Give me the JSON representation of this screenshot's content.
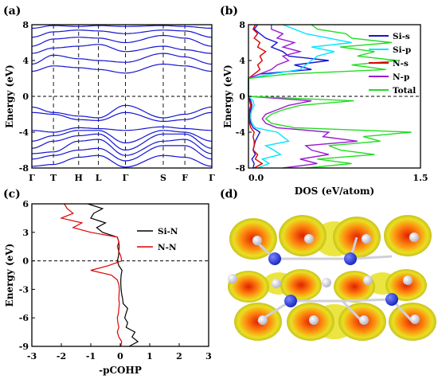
{
  "panels": {
    "a": "(a)",
    "b": "(b)",
    "c": "(c)",
    "d": "(d)"
  },
  "chart_data": [
    {
      "panel": "(a)",
      "type": "line",
      "ylabel": "Energy (eV)",
      "ylim": [
        -8,
        8
      ],
      "yticks": [
        "8",
        "4",
        "0",
        "-4",
        "-8"
      ],
      "xtick_labels": [
        "Γ",
        "T",
        "H",
        "L",
        "Γ",
        "S",
        "F",
        "Γ"
      ],
      "fermi_level": 0,
      "color": "#1414d2",
      "bands": [
        [
          -7.8,
          -7.6,
          -6.8,
          -6.6,
          -7.9,
          -6.6,
          -6.8,
          -7.8
        ],
        [
          -7.0,
          -6.6,
          -6.0,
          -5.8,
          -7.2,
          -5.5,
          -5.5,
          -7.0
        ],
        [
          -6.4,
          -6.2,
          -5.0,
          -4.8,
          -6.6,
          -5.0,
          -4.8,
          -6.4
        ],
        [
          -5.8,
          -5.0,
          -4.4,
          -4.2,
          -6.0,
          -4.2,
          -4.2,
          -5.8
        ],
        [
          -5.0,
          -4.4,
          -3.8,
          -3.8,
          -5.2,
          -3.8,
          -4.0,
          -5.0
        ],
        [
          -3.8,
          -4.0,
          -3.5,
          -3.6,
          -3.8,
          -3.4,
          -3.6,
          -3.8
        ],
        [
          -1.8,
          -2.0,
          -2.6,
          -2.7,
          -1.8,
          -2.8,
          -2.6,
          -1.8
        ],
        [
          -1.2,
          -1.8,
          -2.2,
          -2.4,
          -1.0,
          -2.4,
          -2.0,
          -1.2
        ],
        [
          2.8,
          3.4,
          3.2,
          3.0,
          2.6,
          3.6,
          3.4,
          2.8
        ],
        [
          3.6,
          4.6,
          4.2,
          4.0,
          3.8,
          4.8,
          4.4,
          3.6
        ],
        [
          4.8,
          5.4,
          5.6,
          5.8,
          5.0,
          5.6,
          5.2,
          4.8
        ],
        [
          5.6,
          6.4,
          6.6,
          6.5,
          6.0,
          6.8,
          6.5,
          5.6
        ],
        [
          6.6,
          7.2,
          7.4,
          7.3,
          7.0,
          7.4,
          7.3,
          6.6
        ],
        [
          7.6,
          7.9,
          7.8,
          7.9,
          7.8,
          7.9,
          7.8,
          7.6
        ]
      ]
    },
    {
      "panel": "(b)",
      "type": "line",
      "xlabel": "DOS (eV/atom)",
      "ylabel": "Energy (eV)",
      "xlim": [
        0,
        1.5
      ],
      "ylim": [
        -8,
        8
      ],
      "xticks": [
        "0.0",
        "1.5"
      ],
      "yticks": [
        "8",
        "4",
        "0",
        "-4",
        "-8"
      ],
      "fermi_level": 0,
      "energy": [
        -8,
        -7.5,
        -7,
        -6.5,
        -6,
        -5.5,
        -5,
        -4.5,
        -4,
        -3.5,
        -3,
        -2.5,
        -2,
        -1.5,
        -1,
        -0.5,
        0,
        0.5,
        1,
        1.5,
        2,
        2.5,
        3,
        3.5,
        4,
        4.5,
        5,
        5.5,
        6,
        6.5,
        7,
        7.5,
        8
      ],
      "series": [
        {
          "name": "Si-s",
          "color": "#1414d2",
          "values": [
            0.04,
            0.05,
            0.03,
            0.06,
            0.04,
            0.05,
            0.06,
            0.08,
            0.1,
            0.04,
            0.02,
            0.01,
            0.01,
            0.02,
            0.03,
            0.02,
            0,
            0,
            0,
            0,
            0,
            0.1,
            0.55,
            0.4,
            0.7,
            0.35,
            0.3,
            0.2,
            0.25,
            0.15,
            0.1,
            0.05,
            0.08
          ]
        },
        {
          "name": "Si-p",
          "color": "#00e5ff",
          "values": [
            0.08,
            0.18,
            0.12,
            0.28,
            0.22,
            0.15,
            0.35,
            0.3,
            0.25,
            0.06,
            0.03,
            0.02,
            0.02,
            0.03,
            0.05,
            0.04,
            0,
            0,
            0,
            0,
            0,
            0.2,
            0.45,
            0.5,
            0.55,
            0.6,
            0.75,
            0.55,
            0.9,
            0.7,
            0.5,
            0.4,
            0.3
          ]
        },
        {
          "name": "N-s",
          "color": "#e00000",
          "values": [
            0.05,
            0.12,
            0.06,
            0.08,
            0.04,
            0.05,
            0.05,
            0.04,
            0.05,
            0.02,
            0.01,
            0.01,
            0.01,
            0.01,
            0.02,
            0.01,
            0,
            0,
            0,
            0,
            0,
            0.05,
            0.1,
            0.08,
            0.12,
            0.1,
            0.15,
            0.08,
            0.1,
            0.05,
            0.08,
            0.04,
            0.06
          ]
        },
        {
          "name": "N-p",
          "color": "#9b19d0",
          "values": [
            0.3,
            0.6,
            0.45,
            0.7,
            0.55,
            0.5,
            0.95,
            0.65,
            0.7,
            0.25,
            0.15,
            0.12,
            0.15,
            0.25,
            0.35,
            0.55,
            0,
            0,
            0,
            0,
            0,
            0.1,
            0.2,
            0.25,
            0.35,
            0.3,
            0.45,
            0.3,
            0.4,
            0.25,
            0.3,
            0.2,
            0.2
          ]
        },
        {
          "name": "Total",
          "color": "#22dd22",
          "values": [
            0.5,
            0.9,
            0.6,
            1.1,
            0.8,
            0.7,
            1.15,
            1.0,
            1.42,
            0.4,
            0.2,
            0.15,
            0.2,
            0.3,
            0.45,
            0.92,
            0,
            0,
            0,
            0,
            0,
            0.35,
            1.2,
            0.9,
            1.3,
            0.95,
            1.1,
            0.8,
            1.25,
            0.9,
            0.85,
            0.6,
            0.55
          ]
        }
      ],
      "legend": "top-right"
    },
    {
      "panel": "(c)",
      "type": "line",
      "xlabel": "-pCOHP",
      "ylabel": "Energy (eV)",
      "xlim": [
        -3,
        3
      ],
      "ylim": [
        -9,
        6
      ],
      "xticks": [
        "-3",
        "-2",
        "-1",
        "0",
        "1",
        "2",
        "3"
      ],
      "yticks": [
        "6",
        "3",
        "0",
        "-3",
        "-6",
        "-9"
      ],
      "fermi_level": 0,
      "energy": [
        -9,
        -8.5,
        -8,
        -7.5,
        -7,
        -6.5,
        -6,
        -5.5,
        -5,
        -4.5,
        -4,
        -3.5,
        -3,
        -2.5,
        -2,
        -1.5,
        -1,
        -0.5,
        0,
        0.5,
        1,
        1.5,
        2,
        2.5,
        3,
        3.5,
        4,
        4.5,
        5,
        5.5,
        6
      ],
      "series": [
        {
          "name": "Si-N",
          "color": "#000000",
          "values": [
            0.3,
            0.6,
            0.4,
            0.5,
            0.2,
            0.25,
            0.15,
            0.2,
            0.25,
            0.1,
            0.08,
            0.05,
            0.03,
            0.02,
            0.02,
            0.03,
            0.06,
            -0.05,
            -0.1,
            -0.06,
            -0.05,
            -0.04,
            -0.05,
            -0.1,
            -0.6,
            -0.8,
            -0.5,
            -1.0,
            -0.9,
            -0.6,
            -1.1
          ]
        },
        {
          "name": "N-N",
          "color": "#e00000",
          "values": [
            0.02,
            0.05,
            -0.05,
            -0.1,
            -0.05,
            -0.08,
            -0.1,
            -0.06,
            -0.05,
            -0.03,
            -0.05,
            -0.04,
            -0.03,
            -0.05,
            -0.1,
            -0.3,
            -1.0,
            -0.4,
            0.05,
            0.02,
            -0.05,
            -0.1,
            -0.05,
            -0.1,
            -1.0,
            -1.6,
            -1.3,
            -2.0,
            -1.6,
            -1.8,
            -1.9
          ]
        }
      ],
      "legend": "top-right"
    }
  ],
  "structure_image": {
    "description_icon": "crystal-isosurface-icon",
    "isosurface_color": "#e8e020",
    "core_color": "#e02000",
    "atom_blue": "#1a2ac0",
    "atom_grey": "#b8b8c8"
  }
}
